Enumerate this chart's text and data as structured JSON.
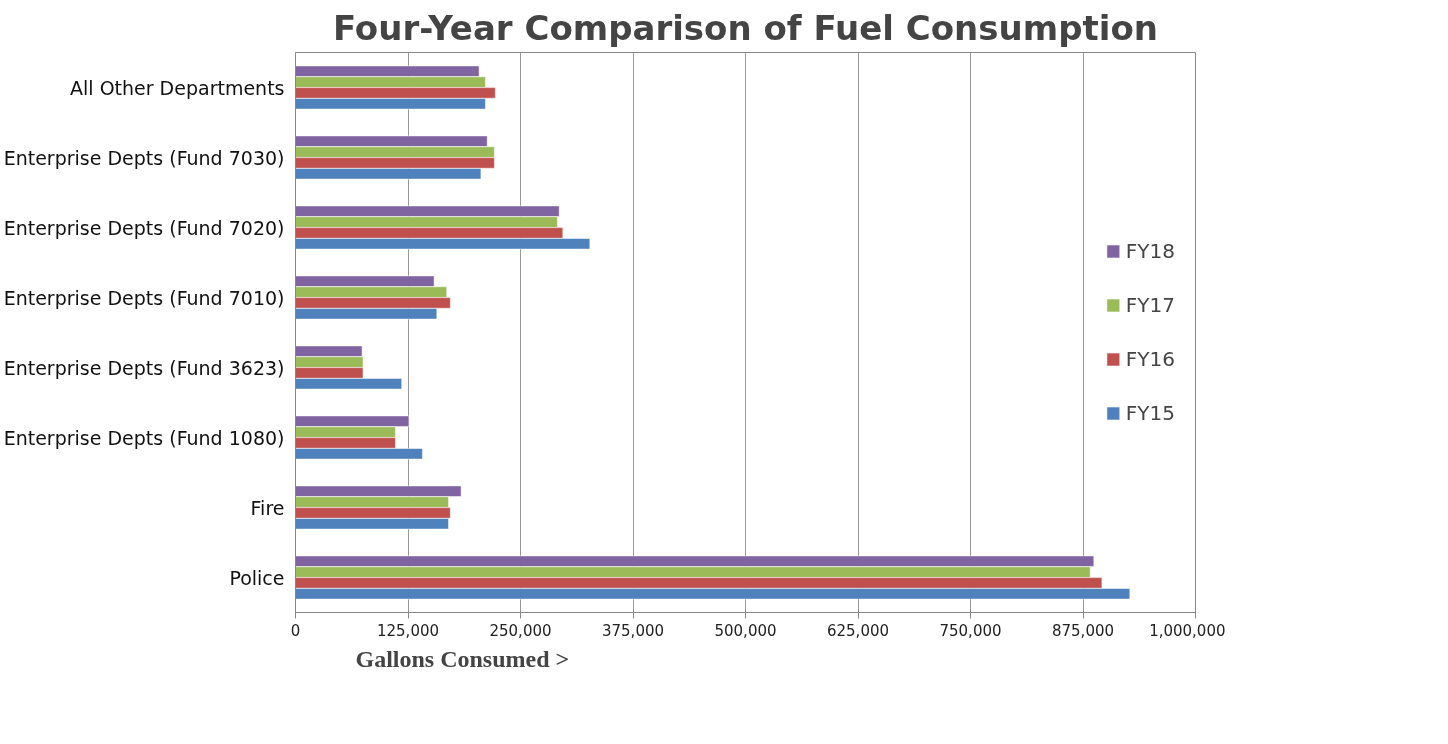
{
  "chart_data": {
    "type": "bar",
    "orientation": "horizontal",
    "title": "Four-Year Comparison of Fuel Consumption",
    "xlabel": "Gallons Consumed >",
    "categories": [
      "All Other Departments",
      "Enterprise Depts (Fund 7030)",
      "Enterprise Depts (Fund 7020)",
      "Enterprise Depts (Fund 7010)",
      "Enterprise Depts (Fund 3623)",
      "Enterprise Depts (Fund 1080)",
      "Fire",
      "Police"
    ],
    "series": [
      {
        "name": "FY18",
        "color": "#8064a2",
        "values": [
          204000,
          213000,
          293000,
          154000,
          74000,
          126000,
          184000,
          887000
        ]
      },
      {
        "name": "FY17",
        "color": "#9bbb59",
        "values": [
          211000,
          221000,
          291000,
          168000,
          75000,
          111000,
          170000,
          883000
        ]
      },
      {
        "name": "FY16",
        "color": "#c0504d",
        "values": [
          222000,
          221000,
          297000,
          172000,
          75000,
          111000,
          172000,
          896000
        ]
      },
      {
        "name": "FY15",
        "color": "#4f81bd",
        "values": [
          211000,
          206000,
          327000,
          157000,
          118000,
          141000,
          170000,
          927000
        ]
      }
    ],
    "xlim": [
      0,
      1000000
    ],
    "xticks": [
      0,
      {
        "value": 125000,
        "label": "125,000"
      },
      {
        "value": 250000,
        "label": "250,000"
      },
      {
        "value": 375000,
        "label": "375,000"
      },
      {
        "value": 500000,
        "label": "500,000"
      },
      {
        "value": 625000,
        "label": "625,000"
      },
      {
        "value": 750000,
        "label": "750,000"
      },
      {
        "value": 875000,
        "label": "875,000"
      },
      {
        "value": 1000000,
        "label": "1,000,000"
      }
    ],
    "grid": "x",
    "legend": "right"
  }
}
